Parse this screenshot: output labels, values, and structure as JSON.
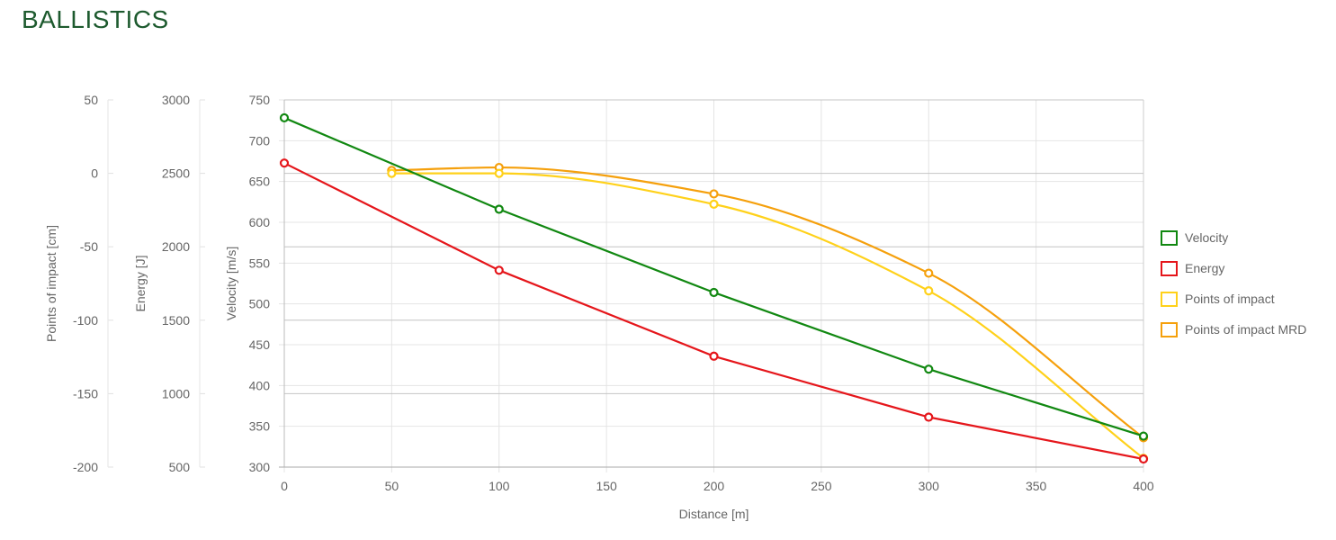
{
  "page": {
    "title": "BALLISTICS"
  },
  "chart_data": {
    "type": "line",
    "x": [
      0,
      100,
      200,
      300,
      400
    ],
    "xlabel": "Distance [m]",
    "xlim": [
      0,
      400
    ],
    "x_ticks": [
      0,
      50,
      100,
      150,
      200,
      250,
      300,
      350,
      400
    ],
    "grid": true,
    "legend_position": "right",
    "axes": {
      "velocity": {
        "label": "Velocity [m/s]",
        "range": [
          300,
          750
        ],
        "ticks": [
          300,
          350,
          400,
          450,
          500,
          550,
          600,
          650,
          700,
          750
        ]
      },
      "energy": {
        "label": "Energy [J]",
        "range": [
          500,
          3000
        ],
        "ticks": [
          500,
          1000,
          1500,
          2000,
          2500,
          3000
        ]
      },
      "poi": {
        "label": "Points of impact [cm]",
        "range": [
          -200,
          50
        ],
        "ticks": [
          -200,
          -150,
          -100,
          -50,
          0,
          50
        ]
      }
    },
    "series": [
      {
        "name": "Velocity",
        "axis": "velocity",
        "color": "#118811",
        "points": [
          [
            0,
            728
          ],
          [
            100,
            616
          ],
          [
            200,
            514
          ],
          [
            300,
            420
          ],
          [
            400,
            338
          ]
        ]
      },
      {
        "name": "Energy",
        "axis": "energy",
        "color": "#e5161b",
        "points": [
          [
            0,
            2570
          ],
          [
            100,
            1840
          ],
          [
            200,
            1255
          ],
          [
            300,
            840
          ],
          [
            400,
            555
          ]
        ]
      },
      {
        "name": "Points of impact",
        "axis": "poi",
        "color": "#ffd11a",
        "points": [
          [
            50,
            0
          ],
          [
            100,
            0
          ],
          [
            200,
            -21
          ],
          [
            300,
            -80
          ],
          [
            400,
            -194
          ]
        ]
      },
      {
        "name": "Points of impact MRD",
        "axis": "poi",
        "color": "#f5a00c",
        "points": [
          [
            50,
            2
          ],
          [
            100,
            4
          ],
          [
            200,
            -14
          ],
          [
            300,
            -68
          ],
          [
            400,
            -180
          ]
        ]
      }
    ]
  }
}
